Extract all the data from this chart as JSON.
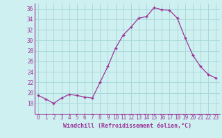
{
  "x": [
    0,
    1,
    2,
    3,
    4,
    5,
    6,
    7,
    8,
    9,
    10,
    11,
    12,
    13,
    14,
    15,
    16,
    17,
    18,
    19,
    20,
    21,
    22,
    23
  ],
  "y": [
    19.5,
    18.8,
    18.0,
    19.0,
    19.7,
    19.5,
    19.2,
    19.0,
    22.0,
    25.0,
    28.5,
    31.0,
    32.5,
    34.2,
    34.5,
    36.2,
    35.8,
    35.7,
    34.2,
    30.5,
    27.2,
    25.0,
    23.5,
    22.8
  ],
  "line_color": "#993399",
  "marker": "+",
  "marker_size": 3.5,
  "marker_lw": 1.0,
  "bg_color": "#cff0f0",
  "grid_color": "#aad8d8",
  "xlabel": "Windchill (Refroidissement éolien,°C)",
  "xlabel_color": "#993399",
  "tick_color": "#993399",
  "ylim": [
    16,
    37
  ],
  "xlim": [
    -0.5,
    23.5
  ],
  "yticks": [
    18,
    20,
    22,
    24,
    26,
    28,
    30,
    32,
    34,
    36
  ],
  "xticks": [
    0,
    1,
    2,
    3,
    4,
    5,
    6,
    7,
    8,
    9,
    10,
    11,
    12,
    13,
    14,
    15,
    16,
    17,
    18,
    19,
    20,
    21,
    22,
    23
  ],
  "tick_fontsize": 5.5,
  "xlabel_fontsize": 6.0
}
